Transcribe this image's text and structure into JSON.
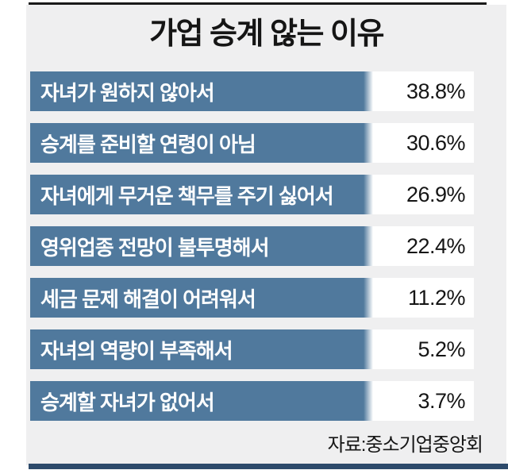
{
  "title": "가업 승계 않는 이유",
  "source": "자료:중소기업중앙회",
  "colors": {
    "bar_blue": "#50799d",
    "panel_bg": "#efeff0",
    "label_white": "#ffffff",
    "text_dark": "#151515",
    "top_rule": "#1a1a1a",
    "bottom_rule_navy": "#2d4a6b"
  },
  "chart_data": {
    "type": "bar",
    "orientation": "horizontal",
    "title": "가업 승계 않는 이유",
    "categories": [
      "자녀가 원하지 않아서",
      "승계를 준비할 연령이 아님",
      "자녀에게 무거운 책무를 주기 싫어서",
      "영위업종 전망이 불투명해서",
      "세금 문제 해결이 어려워서",
      "자녀의 역량이 부족해서",
      "승계할 자녀가 없어서"
    ],
    "values": [
      38.8,
      30.6,
      26.9,
      22.4,
      11.2,
      5.2,
      3.7
    ],
    "value_labels": [
      "38.8%",
      "30.6%",
      "26.9%",
      "22.4%",
      "11.2%",
      "5.2%",
      "3.7%"
    ],
    "unit": "%",
    "source": "자료:중소기업중앙회",
    "legend": false,
    "note": "label bars drawn at equal width with fading right edge; values shown as text in white boxes"
  }
}
